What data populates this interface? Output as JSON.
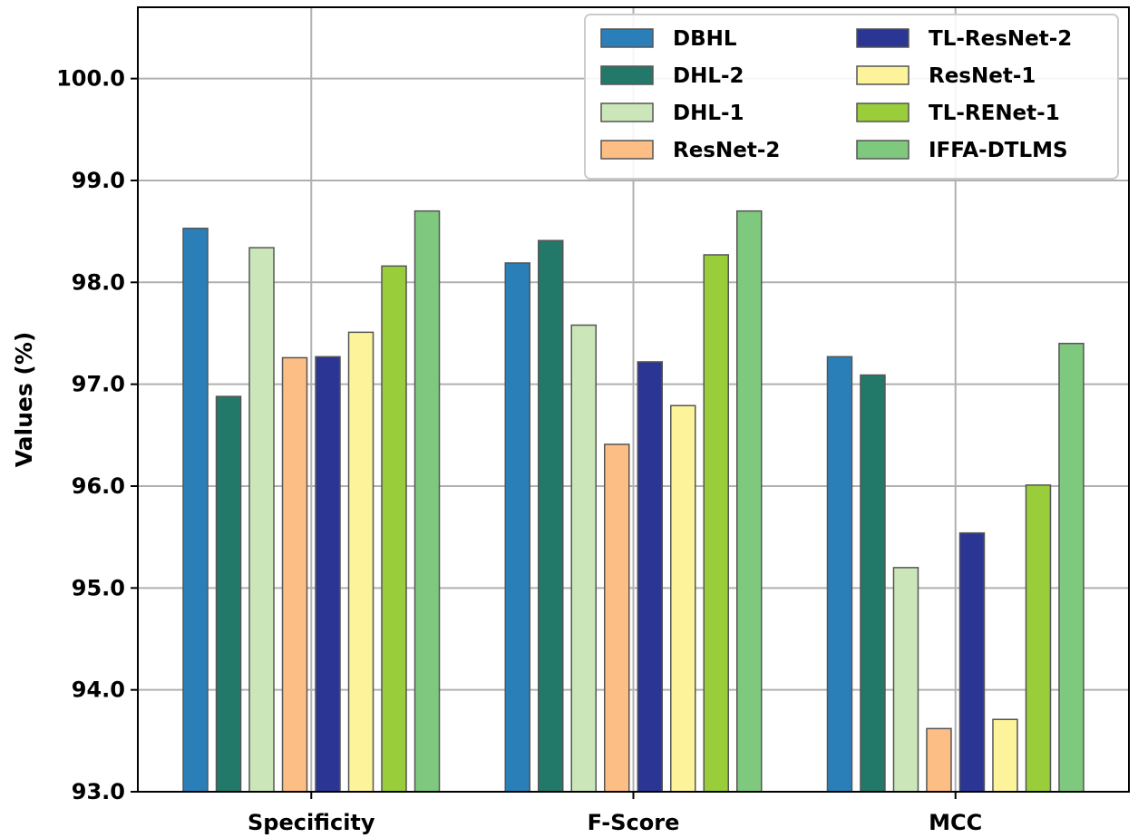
{
  "chart_data": {
    "type": "bar",
    "categories": [
      "Specificity",
      "F-Score",
      "MCC"
    ],
    "ylabel": "Values (%)",
    "xlabel": "",
    "title": "",
    "ylim": [
      93.0,
      100.7
    ],
    "yticks": [
      "93.0",
      "94.0",
      "95.0",
      "96.0",
      "97.0",
      "98.0",
      "99.0",
      "100.0"
    ],
    "grid": true,
    "legend_position": "top-right",
    "series": [
      {
        "name": "DBHL",
        "color": "#2a7fb8",
        "values": [
          98.53,
          98.19,
          97.27
        ]
      },
      {
        "name": "DHL-2",
        "color": "#22796a",
        "values": [
          96.88,
          98.41,
          97.09
        ]
      },
      {
        "name": "DHL-1",
        "color": "#cbe6b8",
        "values": [
          98.34,
          97.58,
          95.2
        ]
      },
      {
        "name": "ResNet-2",
        "color": "#fdbe85",
        "values": [
          97.26,
          96.41,
          93.62
        ]
      },
      {
        "name": "TL-ResNet-2",
        "color": "#2b3594",
        "values": [
          97.27,
          97.22,
          95.54
        ]
      },
      {
        "name": "ResNet-1",
        "color": "#fdf39a",
        "values": [
          97.51,
          96.79,
          93.71
        ]
      },
      {
        "name": "TL-RENet-1",
        "color": "#9acd3a",
        "values": [
          98.16,
          98.27,
          96.01
        ]
      },
      {
        "name": "IFFA-DTLMS",
        "color": "#7fc97f",
        "values": [
          98.7,
          98.7,
          97.4
        ]
      }
    ]
  }
}
